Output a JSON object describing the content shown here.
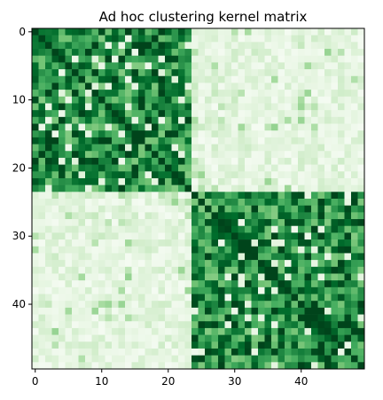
{
  "chart_data": {
    "type": "heatmap",
    "title": "Ad hoc clustering kernel matrix",
    "xlabel": "",
    "ylabel": "",
    "size": 50,
    "x_ticks": [
      0,
      10,
      20,
      30,
      40
    ],
    "y_ticks": [
      0,
      10,
      20,
      30,
      40
    ],
    "x_tick_labels": [
      "0",
      "10",
      "20",
      "30",
      "40"
    ],
    "y_tick_labels": [
      "0",
      "10",
      "20",
      "30",
      "40"
    ],
    "colormap": "Greens",
    "value_range": [
      0,
      1
    ],
    "clusters": [
      {
        "name": "",
        "start": 0,
        "end": 23
      },
      {
        "name": "",
        "start": 24,
        "end": 49
      }
    ],
    "within_cluster_value_mean": 0.75,
    "between_cluster_value_mean": 0.12,
    "diagonal_value": 1.0,
    "grid": false,
    "colors": {
      "low": "#f7fcf5",
      "high": "#00441b"
    }
  }
}
